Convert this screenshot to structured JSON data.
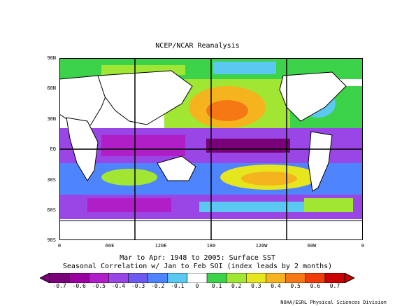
{
  "title": "NCEP/NCAR Reanalysis",
  "map": {
    "lat_labels": [
      "90N",
      "60N",
      "30N",
      "EQ",
      "30S",
      "60S",
      "90S"
    ],
    "lon_labels": [
      "0",
      "60E",
      "120E",
      "180",
      "120W",
      "60W",
      "0"
    ],
    "colors": {
      "ocean_base": "#ffffff",
      "land": "#ffffff",
      "coast": "#000000"
    }
  },
  "caption": {
    "line1": "Mar to Apr: 1948 to 2005: Surface SST",
    "line2": "Seasonal Correlation w/ Jan to Feb SOI (index leads by 2 months)"
  },
  "colorbar": {
    "labels": [
      "-0.7",
      "-0.6",
      "-0.5",
      "-0.4",
      "-0.3",
      "-0.2",
      "-0.1",
      "0",
      "0.1",
      "0.2",
      "0.3",
      "0.4",
      "0.5",
      "0.6",
      "0.7"
    ],
    "colors": [
      "#7a007a",
      "#9a00a0",
      "#b01ec8",
      "#9a46e6",
      "#6a5af0",
      "#4f84ff",
      "#5ac8f0",
      "#ffffff",
      "#3cd24a",
      "#a0e632",
      "#e6e61e",
      "#f5b41e",
      "#f57814",
      "#ee3c0a",
      "#c80000"
    ]
  },
  "credit": "NOAA/ESRL Physical Sciences Division"
}
